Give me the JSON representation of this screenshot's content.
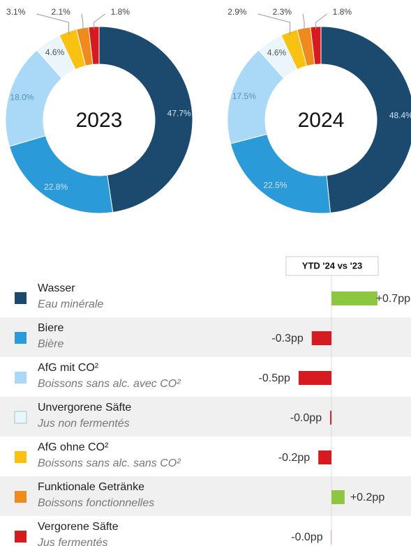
{
  "chart_data": [
    {
      "type": "pie",
      "title": "2023",
      "values": [
        47.7,
        22.8,
        18.0,
        4.6,
        3.1,
        2.1,
        1.8
      ],
      "value_labels": [
        "47.7%",
        "22.8%",
        "18.0%",
        "4.6%",
        "3.1%",
        "2.1%",
        "1.8%"
      ],
      "colors": [
        "#1b4a6e",
        "#2b9ad8",
        "#a9d9f6",
        "#eaf5fc",
        "#f9c212",
        "#f08a1c",
        "#d71920"
      ]
    },
    {
      "type": "pie",
      "title": "2024",
      "values": [
        48.4,
        22.5,
        17.5,
        4.6,
        2.9,
        2.3,
        1.8
      ],
      "value_labels": [
        "48.4%",
        "22.5%",
        "17.5%",
        "4.6%",
        "2.9%",
        "2.3%",
        "1.8%"
      ],
      "colors": [
        "#1b4a6e",
        "#2b9ad8",
        "#a9d9f6",
        "#eaf5fc",
        "#f9c212",
        "#f08a1c",
        "#d71920"
      ]
    },
    {
      "type": "bar",
      "title": "YTD '24 vs '23",
      "categories": [
        "Wasser",
        "Biere",
        "AfG mit CO²",
        "Unvergorene Säfte",
        "AfG ohne CO²",
        "Funktionale Getränke",
        "Vergorene Säfte"
      ],
      "category_translations": [
        "Eau minérale",
        "Bière",
        "Boissons sans alc. avec CO²",
        "Jus non fermentés",
        "Boissons sans alc. sans CO²",
        "Boissons fonctionnelles",
        "Jus fermentés"
      ],
      "colors": [
        "#1b4a6e",
        "#2b9ad8",
        "#a9d9f6",
        "#eaf5fc",
        "#f9c212",
        "#f08a1c",
        "#d71920"
      ],
      "values": [
        0.7,
        -0.3,
        -0.5,
        -0.02,
        -0.2,
        0.2,
        -0.004
      ],
      "value_labels": [
        "+0.7pp",
        "-0.3pp",
        "-0.5pp",
        "-0.0pp",
        "-0.2pp",
        "+0.2pp",
        "-0.0pp"
      ],
      "positive_color": "#8dc63f",
      "negative_color": "#d71920",
      "xlim": [
        -1.2,
        1.2
      ]
    }
  ]
}
